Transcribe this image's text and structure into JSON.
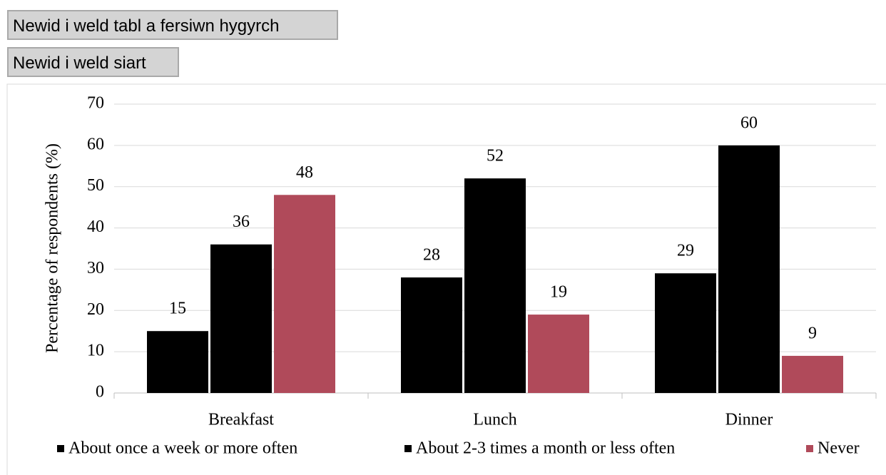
{
  "buttons": [
    "Newid i weld tabl a fersiwn hygyrch",
    "Newid i weld siart"
  ],
  "chart_data": {
    "type": "bar",
    "y_label": "Percentage of respondents (%)",
    "categories": [
      "Breakfast",
      "Lunch",
      "Dinner"
    ],
    "series": [
      {
        "name": "About once a week or more often",
        "color": "#000000",
        "values": [
          15,
          28,
          29
        ]
      },
      {
        "name": "About 2-3 times a month or less often",
        "color": "#000000",
        "values": [
          36,
          52,
          60
        ]
      },
      {
        "name": "Never",
        "color": "#b04a5a",
        "values": [
          48,
          19,
          9
        ]
      }
    ],
    "ylim": [
      0,
      70
    ],
    "yticks": [
      0,
      10,
      20,
      30,
      40,
      50,
      60,
      70
    ],
    "grid": true,
    "legend": "bottom"
  }
}
